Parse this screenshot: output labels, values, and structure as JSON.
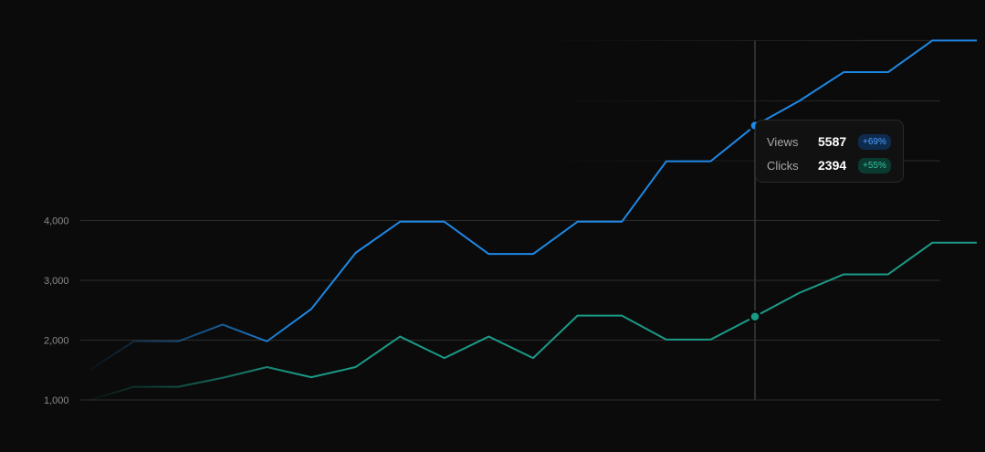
{
  "chart_data": {
    "type": "line",
    "x": [
      1,
      2,
      3,
      4,
      5,
      6,
      7,
      8,
      9,
      10,
      11,
      12,
      13,
      14,
      15,
      16,
      17,
      18,
      19,
      20,
      21
    ],
    "series": [
      {
        "name": "Views",
        "color": "#1e88e5",
        "values": [
          1500,
          1980,
          1980,
          2260,
          1980,
          2520,
          3460,
          3980,
          3980,
          3440,
          3440,
          3980,
          3980,
          4990,
          4990,
          5587,
          6000,
          6480,
          6480,
          7010,
          7010
        ]
      },
      {
        "name": "Clicks",
        "color": "#1a9a86",
        "values": [
          1000,
          1220,
          1220,
          1370,
          1550,
          1380,
          1550,
          2060,
          1700,
          2060,
          1700,
          2410,
          2410,
          2010,
          2010,
          2394,
          2790,
          3100,
          3100,
          3630,
          3630
        ]
      }
    ],
    "y_ticks": [
      "1,000",
      "2,000",
      "3,000",
      "4,000"
    ],
    "ylim": [
      1000,
      7010
    ],
    "grid": true,
    "hover_index": 15
  },
  "tooltip": {
    "rows": [
      {
        "label": "Views",
        "value": "5587",
        "change": "+69%"
      },
      {
        "label": "Clicks",
        "value": "2394",
        "change": "+55%"
      }
    ]
  }
}
